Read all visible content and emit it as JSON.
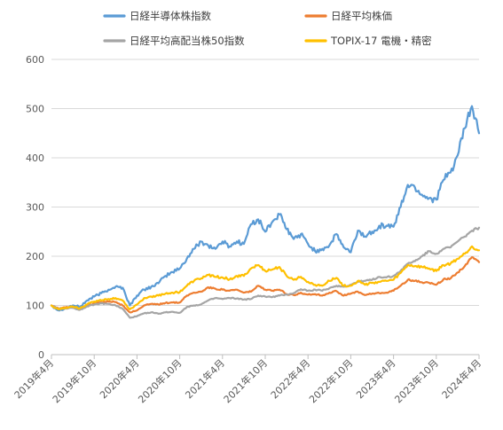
{
  "chart_data": {
    "type": "line",
    "title": "",
    "xlabel": "",
    "ylabel": "",
    "ylim": [
      0,
      600
    ],
    "yticks": [
      0,
      100,
      200,
      300,
      400,
      500,
      600
    ],
    "xlim": [
      "2019-04",
      "2024-04"
    ],
    "xticks": [
      "2019年4月",
      "2019年10月",
      "2020年4月",
      "2020年10月",
      "2021年4月",
      "2021年10月",
      "2022年4月",
      "2022年10月",
      "2023年4月",
      "2023年10月",
      "2024年4月"
    ],
    "grid": "horizontal",
    "legend_position": "top",
    "series": [
      {
        "name": "日経半導体株指数",
        "color": "#5B9BD5",
        "points": [
          [
            "2019-04",
            100
          ],
          [
            "2019-05",
            90
          ],
          [
            "2019-06",
            95
          ],
          [
            "2019-07",
            100
          ],
          [
            "2019-08",
            97
          ],
          [
            "2019-09",
            110
          ],
          [
            "2019-10",
            118
          ],
          [
            "2019-11",
            125
          ],
          [
            "2019-12",
            132
          ],
          [
            "2020-01",
            138
          ],
          [
            "2020-02",
            136
          ],
          [
            "2020-03",
            100
          ],
          [
            "2020-04",
            120
          ],
          [
            "2020-05",
            132
          ],
          [
            "2020-06",
            138
          ],
          [
            "2020-07",
            145
          ],
          [
            "2020-08",
            160
          ],
          [
            "2020-09",
            168
          ],
          [
            "2020-10",
            175
          ],
          [
            "2020-11",
            195
          ],
          [
            "2020-12",
            215
          ],
          [
            "2021-01",
            230
          ],
          [
            "2021-02",
            222
          ],
          [
            "2021-03",
            215
          ],
          [
            "2021-04",
            230
          ],
          [
            "2021-05",
            220
          ],
          [
            "2021-06",
            230
          ],
          [
            "2021-07",
            225
          ],
          [
            "2021-08",
            265
          ],
          [
            "2021-09",
            275
          ],
          [
            "2021-10",
            250
          ],
          [
            "2021-11",
            270
          ],
          [
            "2021-12",
            285
          ],
          [
            "2022-01",
            255
          ],
          [
            "2022-02",
            235
          ],
          [
            "2022-03",
            245
          ],
          [
            "2022-04",
            225
          ],
          [
            "2022-05",
            210
          ],
          [
            "2022-06",
            215
          ],
          [
            "2022-07",
            222
          ],
          [
            "2022-08",
            245
          ],
          [
            "2022-09",
            218
          ],
          [
            "2022-10",
            208
          ],
          [
            "2022-11",
            252
          ],
          [
            "2022-12",
            240
          ],
          [
            "2023-01",
            250
          ],
          [
            "2023-02",
            262
          ],
          [
            "2023-03",
            262
          ],
          [
            "2023-04",
            260
          ],
          [
            "2023-05",
            300
          ],
          [
            "2023-06",
            345
          ],
          [
            "2023-07",
            340
          ],
          [
            "2023-08",
            325
          ],
          [
            "2023-09",
            318
          ],
          [
            "2023-10",
            315
          ],
          [
            "2023-11",
            355
          ],
          [
            "2023-12",
            370
          ],
          [
            "2024-01",
            405
          ],
          [
            "2024-02",
            460
          ],
          [
            "2024-03",
            505
          ],
          [
            "2024-04",
            450
          ]
        ]
      },
      {
        "name": "日経平均株価",
        "color": "#ED7D31",
        "points": [
          [
            "2019-04",
            100
          ],
          [
            "2019-05",
            94
          ],
          [
            "2019-06",
            96
          ],
          [
            "2019-07",
            97
          ],
          [
            "2019-08",
            93
          ],
          [
            "2019-09",
            99
          ],
          [
            "2019-10",
            104
          ],
          [
            "2019-11",
            106
          ],
          [
            "2019-12",
            108
          ],
          [
            "2020-01",
            107
          ],
          [
            "2020-02",
            100
          ],
          [
            "2020-03",
            86
          ],
          [
            "2020-04",
            90
          ],
          [
            "2020-05",
            100
          ],
          [
            "2020-06",
            103
          ],
          [
            "2020-07",
            102
          ],
          [
            "2020-08",
            105
          ],
          [
            "2020-09",
            106
          ],
          [
            "2020-10",
            106
          ],
          [
            "2020-11",
            120
          ],
          [
            "2020-12",
            126
          ],
          [
            "2021-01",
            128
          ],
          [
            "2021-02",
            137
          ],
          [
            "2021-03",
            134
          ],
          [
            "2021-04",
            132
          ],
          [
            "2021-05",
            130
          ],
          [
            "2021-06",
            132
          ],
          [
            "2021-07",
            126
          ],
          [
            "2021-08",
            128
          ],
          [
            "2021-09",
            140
          ],
          [
            "2021-10",
            132
          ],
          [
            "2021-11",
            130
          ],
          [
            "2021-12",
            132
          ],
          [
            "2022-01",
            123
          ],
          [
            "2022-02",
            121
          ],
          [
            "2022-03",
            126
          ],
          [
            "2022-04",
            122
          ],
          [
            "2022-05",
            123
          ],
          [
            "2022-06",
            120
          ],
          [
            "2022-07",
            126
          ],
          [
            "2022-08",
            129
          ],
          [
            "2022-09",
            120
          ],
          [
            "2022-10",
            124
          ],
          [
            "2022-11",
            128
          ],
          [
            "2022-12",
            121
          ],
          [
            "2023-01",
            124
          ],
          [
            "2023-02",
            125
          ],
          [
            "2023-03",
            126
          ],
          [
            "2023-04",
            130
          ],
          [
            "2023-05",
            140
          ],
          [
            "2023-06",
            152
          ],
          [
            "2023-07",
            150
          ],
          [
            "2023-08",
            147
          ],
          [
            "2023-09",
            146
          ],
          [
            "2023-10",
            142
          ],
          [
            "2023-11",
            153
          ],
          [
            "2023-12",
            155
          ],
          [
            "2024-01",
            167
          ],
          [
            "2024-02",
            180
          ],
          [
            "2024-03",
            198
          ],
          [
            "2024-04",
            188
          ]
        ]
      },
      {
        "name": "日経平均高配当株50指数",
        "color": "#A5A5A5",
        "points": [
          [
            "2019-04",
            100
          ],
          [
            "2019-05",
            93
          ],
          [
            "2019-06",
            94
          ],
          [
            "2019-07",
            95
          ],
          [
            "2019-08",
            91
          ],
          [
            "2019-09",
            98
          ],
          [
            "2019-10",
            102
          ],
          [
            "2019-11",
            104
          ],
          [
            "2019-12",
            103
          ],
          [
            "2020-01",
            100
          ],
          [
            "2020-02",
            93
          ],
          [
            "2020-03",
            75
          ],
          [
            "2020-04",
            78
          ],
          [
            "2020-05",
            84
          ],
          [
            "2020-06",
            86
          ],
          [
            "2020-07",
            83
          ],
          [
            "2020-08",
            86
          ],
          [
            "2020-09",
            87
          ],
          [
            "2020-10",
            85
          ],
          [
            "2020-11",
            97
          ],
          [
            "2020-12",
            100
          ],
          [
            "2021-01",
            102
          ],
          [
            "2021-02",
            110
          ],
          [
            "2021-03",
            115
          ],
          [
            "2021-04",
            113
          ],
          [
            "2021-05",
            115
          ],
          [
            "2021-06",
            114
          ],
          [
            "2021-07",
            112
          ],
          [
            "2021-08",
            113
          ],
          [
            "2021-09",
            120
          ],
          [
            "2021-10",
            118
          ],
          [
            "2021-11",
            117
          ],
          [
            "2021-12",
            120
          ],
          [
            "2022-01",
            122
          ],
          [
            "2022-02",
            125
          ],
          [
            "2022-03",
            133
          ],
          [
            "2022-04",
            130
          ],
          [
            "2022-05",
            132
          ],
          [
            "2022-06",
            130
          ],
          [
            "2022-07",
            135
          ],
          [
            "2022-08",
            140
          ],
          [
            "2022-09",
            138
          ],
          [
            "2022-10",
            142
          ],
          [
            "2022-11",
            148
          ],
          [
            "2022-12",
            150
          ],
          [
            "2023-01",
            152
          ],
          [
            "2023-02",
            158
          ],
          [
            "2023-03",
            157
          ],
          [
            "2023-04",
            160
          ],
          [
            "2023-05",
            170
          ],
          [
            "2023-06",
            185
          ],
          [
            "2023-07",
            190
          ],
          [
            "2023-08",
            200
          ],
          [
            "2023-09",
            210
          ],
          [
            "2023-10",
            205
          ],
          [
            "2023-11",
            215
          ],
          [
            "2023-12",
            218
          ],
          [
            "2024-01",
            230
          ],
          [
            "2024-02",
            240
          ],
          [
            "2024-03",
            252
          ],
          [
            "2024-04",
            258
          ]
        ]
      },
      {
        "name": "TOPIX-17 電機・精密",
        "color": "#FFC000",
        "points": [
          [
            "2019-04",
            100
          ],
          [
            "2019-05",
            92
          ],
          [
            "2019-06",
            95
          ],
          [
            "2019-07",
            98
          ],
          [
            "2019-08",
            94
          ],
          [
            "2019-09",
            102
          ],
          [
            "2019-10",
            108
          ],
          [
            "2019-11",
            110
          ],
          [
            "2019-12",
            113
          ],
          [
            "2020-01",
            115
          ],
          [
            "2020-02",
            110
          ],
          [
            "2020-03",
            92
          ],
          [
            "2020-04",
            102
          ],
          [
            "2020-05",
            115
          ],
          [
            "2020-06",
            118
          ],
          [
            "2020-07",
            120
          ],
          [
            "2020-08",
            124
          ],
          [
            "2020-09",
            126
          ],
          [
            "2020-10",
            127
          ],
          [
            "2020-11",
            140
          ],
          [
            "2020-12",
            150
          ],
          [
            "2021-01",
            155
          ],
          [
            "2021-02",
            162
          ],
          [
            "2021-03",
            158
          ],
          [
            "2021-04",
            157
          ],
          [
            "2021-05",
            153
          ],
          [
            "2021-06",
            160
          ],
          [
            "2021-07",
            160
          ],
          [
            "2021-08",
            175
          ],
          [
            "2021-09",
            182
          ],
          [
            "2021-10",
            170
          ],
          [
            "2021-11",
            173
          ],
          [
            "2021-12",
            178
          ],
          [
            "2022-01",
            160
          ],
          [
            "2022-02",
            152
          ],
          [
            "2022-03",
            158
          ],
          [
            "2022-04",
            148
          ],
          [
            "2022-05",
            142
          ],
          [
            "2022-06",
            140
          ],
          [
            "2022-07",
            150
          ],
          [
            "2022-08",
            156
          ],
          [
            "2022-09",
            140
          ],
          [
            "2022-10",
            140
          ],
          [
            "2022-11",
            150
          ],
          [
            "2022-12",
            142
          ],
          [
            "2023-01",
            146
          ],
          [
            "2023-02",
            148
          ],
          [
            "2023-03",
            150
          ],
          [
            "2023-04",
            152
          ],
          [
            "2023-05",
            166
          ],
          [
            "2023-06",
            182
          ],
          [
            "2023-07",
            180
          ],
          [
            "2023-08",
            178
          ],
          [
            "2023-09",
            175
          ],
          [
            "2023-10",
            170
          ],
          [
            "2023-11",
            182
          ],
          [
            "2023-12",
            185
          ],
          [
            "2024-01",
            195
          ],
          [
            "2024-02",
            205
          ],
          [
            "2024-03",
            220
          ],
          [
            "2024-04",
            212
          ]
        ]
      }
    ]
  }
}
